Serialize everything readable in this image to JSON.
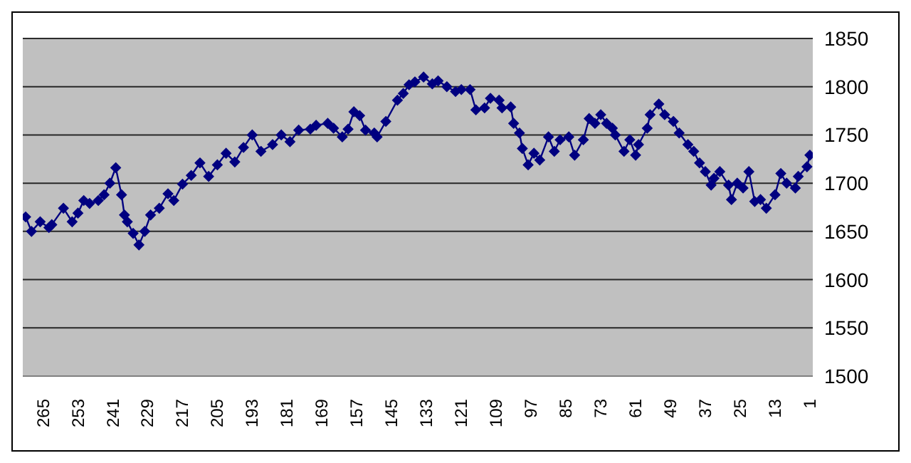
{
  "chart_data": {
    "type": "line",
    "x": [
      271,
      269,
      266,
      263,
      262,
      258,
      255,
      253,
      251,
      249,
      246,
      244,
      242,
      240,
      238,
      237,
      236,
      234,
      232,
      230,
      228,
      225,
      222,
      220,
      217,
      214,
      211,
      208,
      205,
      202,
      199,
      196,
      193,
      190,
      186,
      183,
      180,
      177,
      173,
      171,
      167,
      165,
      162,
      160,
      158,
      156,
      154,
      151,
      150,
      147,
      143,
      141,
      139,
      137,
      134,
      131,
      129,
      126,
      123,
      121,
      118,
      116,
      113,
      111,
      108,
      107,
      104,
      103,
      101,
      100,
      98,
      96,
      94,
      91,
      89,
      87,
      84,
      82,
      79,
      77,
      75,
      73,
      71,
      69,
      68,
      65,
      63,
      61,
      60,
      57,
      56,
      53,
      51,
      48,
      46,
      43,
      41,
      39,
      37,
      35,
      34,
      32,
      29,
      28,
      26,
      24,
      22,
      20,
      18,
      16,
      13,
      11,
      9,
      6,
      5,
      2,
      1
    ],
    "series": [
      {
        "color": "#000080",
        "values": [
          1665,
          1650,
          1660,
          1654,
          1657,
          1674,
          1660,
          1669,
          1682,
          1679,
          1682,
          1688,
          1700,
          1716,
          1688,
          1667,
          1660,
          1648,
          1636,
          1650,
          1667,
          1674,
          1689,
          1682,
          1699,
          1708,
          1721,
          1707,
          1719,
          1731,
          1722,
          1737,
          1750,
          1733,
          1740,
          1750,
          1743,
          1755,
          1756,
          1760,
          1762,
          1757,
          1748,
          1756,
          1774,
          1770,
          1755,
          1752,
          1748,
          1764,
          1786,
          1793,
          1802,
          1805,
          1810,
          1803,
          1806,
          1800,
          1795,
          1797,
          1797,
          1776,
          1778,
          1788,
          1786,
          1778,
          1779,
          1762,
          1752,
          1736,
          1719,
          1731,
          1724,
          1748,
          1733,
          1745,
          1748,
          1729,
          1745,
          1767,
          1762,
          1771,
          1762,
          1757,
          1750,
          1733,
          1745,
          1729,
          1740,
          1757,
          1771,
          1782,
          1771,
          1764,
          1752,
          1740,
          1733,
          1721,
          1712,
          1698,
          1705,
          1712,
          1698,
          1683,
          1700,
          1695,
          1712,
          1681,
          1683,
          1674,
          1688,
          1710,
          1700,
          1695,
          1707,
          1717,
          1729
        ]
      }
    ],
    "xlim": [
      272,
      0
    ],
    "xticks": [
      265,
      253,
      241,
      229,
      217,
      205,
      193,
      181,
      169,
      157,
      145,
      133,
      121,
      109,
      97,
      85,
      73,
      61,
      49,
      37,
      25,
      13,
      1
    ],
    "ylim": [
      1500,
      1850
    ],
    "yticks": [
      1500,
      1550,
      1600,
      1650,
      1700,
      1750,
      1800,
      1850
    ],
    "grid": "y",
    "marker": "diamond",
    "legend": false
  }
}
